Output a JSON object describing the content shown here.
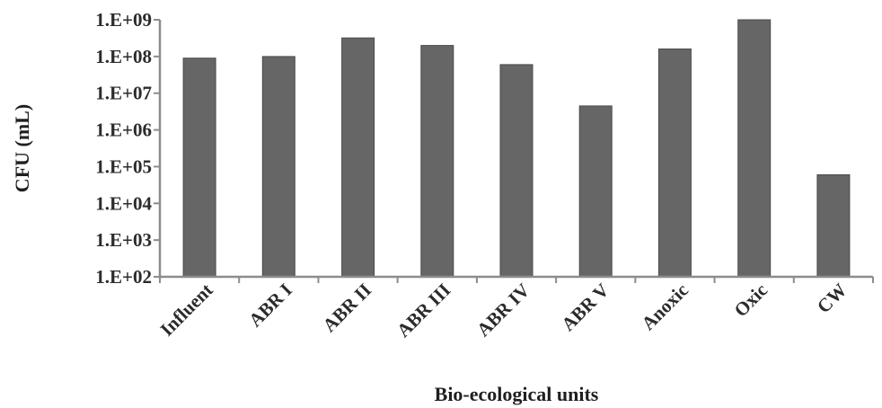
{
  "chart_data": {
    "type": "bar",
    "title": "",
    "xlabel": "Bio-ecological units",
    "ylabel": "CFU (mL)",
    "y_scale": "log",
    "ylim": [
      100,
      1000000000
    ],
    "y_ticks": [
      "1.E+02",
      "1.E+03",
      "1.E+04",
      "1.E+05",
      "1.E+06",
      "1.E+07",
      "1.E+08",
      "1.E+09"
    ],
    "categories": [
      "Influent",
      "ABR I",
      "ABR II",
      "ABR III",
      "ABR IV",
      "ABR V",
      "Anoxic",
      "Oxic",
      "CW"
    ],
    "values": [
      90000000,
      100000000,
      320000000,
      200000000,
      60000000,
      4500000,
      160000000,
      1000000000,
      60000
    ],
    "grid": false,
    "legend": "none",
    "bar_color": "#666666",
    "axis_color": "#8c8c8c"
  }
}
